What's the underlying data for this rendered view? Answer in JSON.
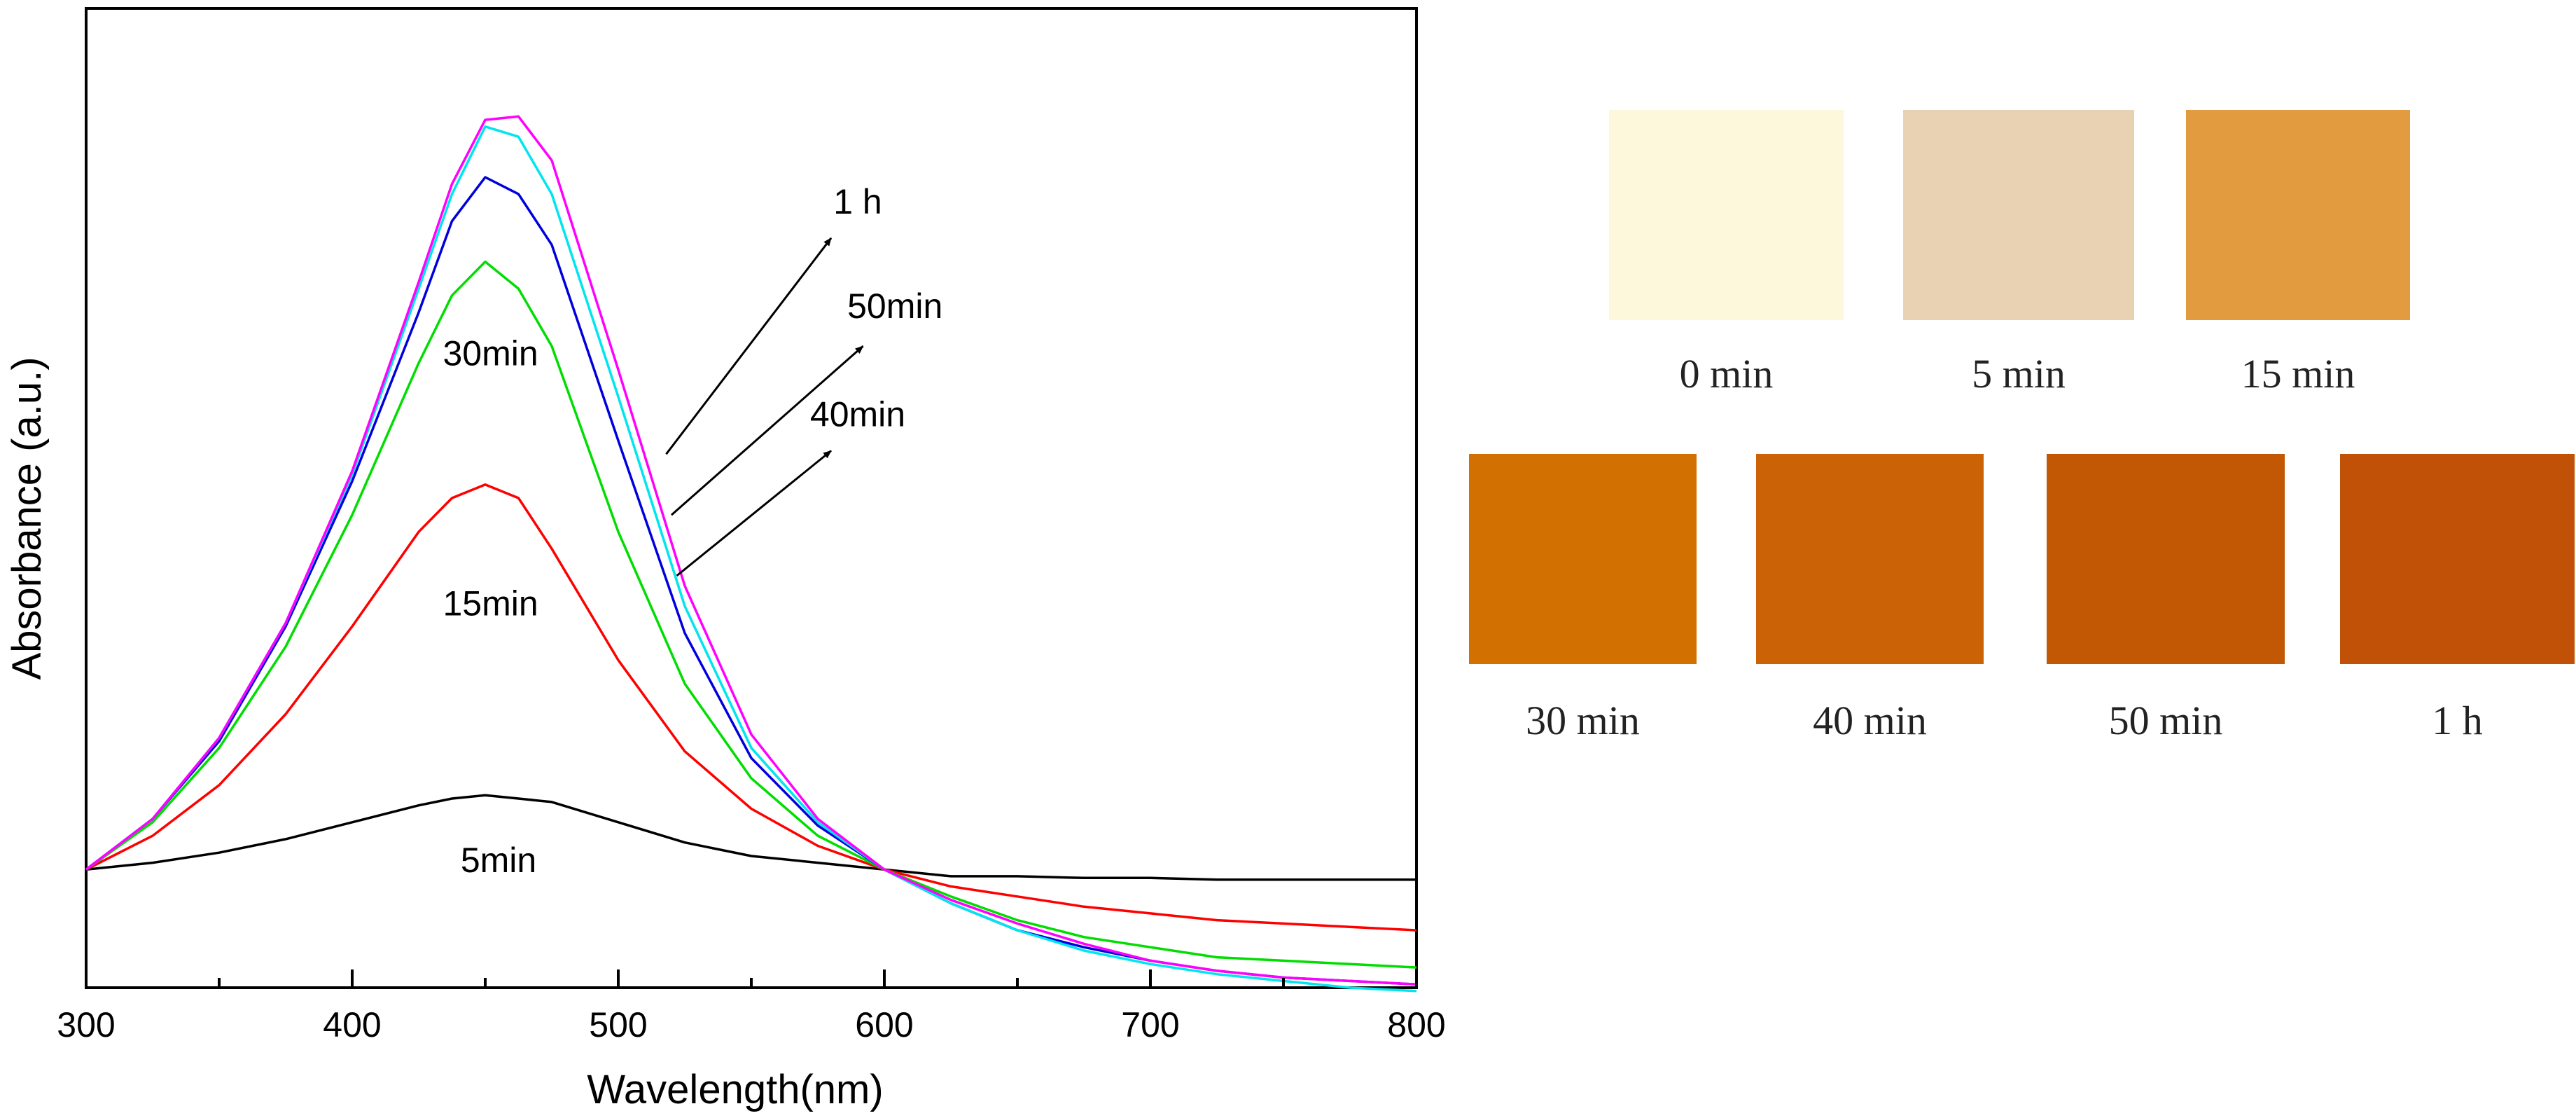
{
  "chart_data": {
    "type": "line",
    "title": "",
    "xlabel": "Wavelength(nm)",
    "ylabel": "Absorbance (a.u.)",
    "xlim": [
      300,
      800
    ],
    "ylim": [
      -0.35,
      2.55
    ],
    "xticks": [
      300,
      400,
      500,
      600,
      700,
      800
    ],
    "yticks_shown": false,
    "grid": false,
    "x": [
      300,
      325,
      350,
      375,
      400,
      425,
      437.5,
      450,
      462.5,
      475,
      500,
      525,
      550,
      575,
      600,
      625,
      650,
      675,
      700,
      725,
      750,
      775,
      800
    ],
    "series": [
      {
        "name": "5min",
        "color": "#000000",
        "values": [
          0,
          0.02,
          0.05,
          0.09,
          0.14,
          0.19,
          0.21,
          0.22,
          0.21,
          0.2,
          0.14,
          0.08,
          0.04,
          0.02,
          0.0,
          -0.02,
          -0.02,
          -0.025,
          -0.025,
          -0.03,
          -0.03,
          -0.03,
          -0.03
        ]
      },
      {
        "name": "15min",
        "color": "#ff0000",
        "values": [
          0,
          0.1,
          0.25,
          0.46,
          0.72,
          1.0,
          1.1,
          1.14,
          1.1,
          0.95,
          0.62,
          0.35,
          0.18,
          0.07,
          0.0,
          -0.05,
          -0.08,
          -0.11,
          -0.13,
          -0.15,
          -0.16,
          -0.17,
          -0.18
        ]
      },
      {
        "name": "30min",
        "color": "#00dd00",
        "values": [
          0,
          0.14,
          0.36,
          0.66,
          1.05,
          1.5,
          1.7,
          1.8,
          1.72,
          1.55,
          1.0,
          0.55,
          0.27,
          0.1,
          0.0,
          -0.08,
          -0.15,
          -0.2,
          -0.23,
          -0.26,
          -0.27,
          -0.28,
          -0.29
        ]
      },
      {
        "name": "40min",
        "color": "#0000dd",
        "values": [
          0,
          0.15,
          0.38,
          0.72,
          1.15,
          1.65,
          1.92,
          2.05,
          2.0,
          1.85,
          1.27,
          0.7,
          0.33,
          0.13,
          0.0,
          -0.1,
          -0.18,
          -0.23,
          -0.27,
          -0.3,
          -0.32,
          -0.33,
          -0.34
        ]
      },
      {
        "name": "50min",
        "color": "#00e5ee",
        "values": [
          0,
          0.15,
          0.39,
          0.73,
          1.17,
          1.72,
          2.0,
          2.2,
          2.17,
          2.0,
          1.4,
          0.78,
          0.36,
          0.14,
          0.0,
          -0.1,
          -0.18,
          -0.24,
          -0.28,
          -0.31,
          -0.33,
          -0.35,
          -0.36
        ]
      },
      {
        "name": "1 h",
        "color": "#ff00ff",
        "values": [
          0,
          0.15,
          0.39,
          0.73,
          1.18,
          1.74,
          2.03,
          2.22,
          2.23,
          2.1,
          1.48,
          0.84,
          0.4,
          0.15,
          0.0,
          -0.09,
          -0.16,
          -0.22,
          -0.27,
          -0.3,
          -0.32,
          -0.33,
          -0.34
        ]
      }
    ],
    "annotations": [
      {
        "text": "5min",
        "x": 455,
        "y": 0.02
      },
      {
        "text": "15min",
        "x": 452,
        "y": 0.78
      },
      {
        "text": "30min",
        "x": 452,
        "y": 1.52
      },
      {
        "text": "40min",
        "x": 590,
        "y": 1.34,
        "arrow_from": [
          522,
          0.87
        ],
        "arrow_to": [
          580,
          1.24
        ]
      },
      {
        "text": "50min",
        "x": 604,
        "y": 1.66,
        "arrow_from": [
          520,
          1.05
        ],
        "arrow_to": [
          592,
          1.55
        ]
      },
      {
        "text": "1 h",
        "x": 590,
        "y": 1.97,
        "arrow_from": [
          518,
          1.23
        ],
        "arrow_to": [
          580,
          1.87
        ]
      }
    ]
  },
  "swatches": {
    "row1": [
      {
        "label": "0 min",
        "color": "#fdf7db"
      },
      {
        "label": "5 min",
        "color": "#e9d2b3"
      },
      {
        "label": "15 min",
        "color": "#e39b3f"
      }
    ],
    "row2": [
      {
        "label": "30 min",
        "color": "#d27002"
      },
      {
        "label": "40 min",
        "color": "#cb6306"
      },
      {
        "label": "50 min",
        "color": "#c25704"
      },
      {
        "label": "1 h",
        "color": "#c15107"
      }
    ]
  }
}
